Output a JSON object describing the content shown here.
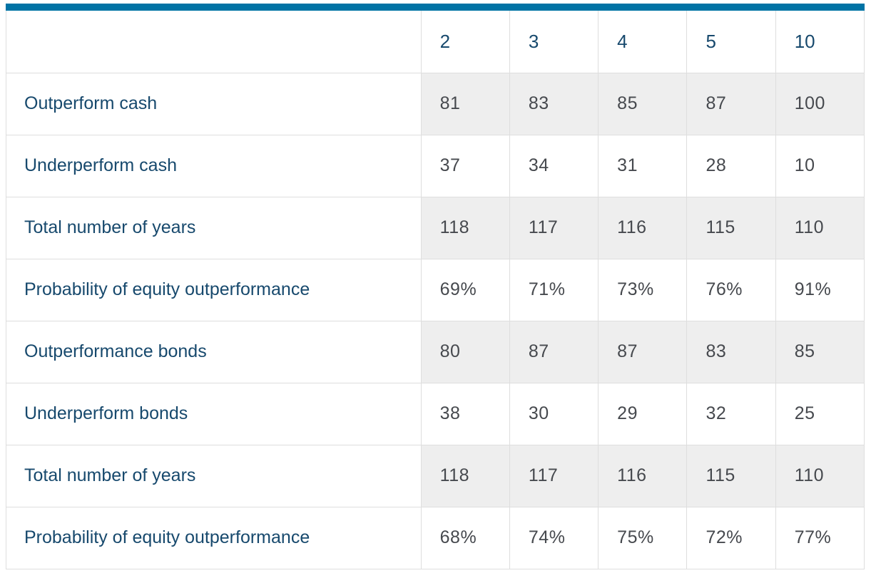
{
  "colors": {
    "accent": "#0073a5",
    "label_text": "#17496d",
    "value_text": "#46494e",
    "shaded_cell": "#eeeeee",
    "border": "#dedede"
  },
  "chart_data": {
    "type": "table",
    "title": "",
    "corner_label": "",
    "columns": [
      "2",
      "3",
      "4",
      "5",
      "10"
    ],
    "rows": [
      {
        "label": "Outperform cash",
        "values": [
          "81",
          "83",
          "85",
          "87",
          "100"
        ],
        "shaded": true
      },
      {
        "label": "Underperform cash",
        "values": [
          "37",
          "34",
          "31",
          "28",
          "10"
        ],
        "shaded": false
      },
      {
        "label": "Total number of years",
        "values": [
          "118",
          "117",
          "116",
          "115",
          "110"
        ],
        "shaded": true
      },
      {
        "label": "Probability of equity outperformance",
        "values": [
          "69%",
          "71%",
          "73%",
          "76%",
          "91%"
        ],
        "shaded": false
      },
      {
        "label": "Outperformance bonds",
        "values": [
          "80",
          "87",
          "87",
          "83",
          "85"
        ],
        "shaded": true
      },
      {
        "label": "Underperform bonds",
        "values": [
          "38",
          "30",
          "29",
          "32",
          "25"
        ],
        "shaded": false
      },
      {
        "label": "Total number of years",
        "values": [
          "118",
          "117",
          "116",
          "115",
          "110"
        ],
        "shaded": true
      },
      {
        "label": "Probability of equity outperformance",
        "values": [
          "68%",
          "74%",
          "75%",
          "72%",
          "77%"
        ],
        "shaded": false
      }
    ]
  }
}
